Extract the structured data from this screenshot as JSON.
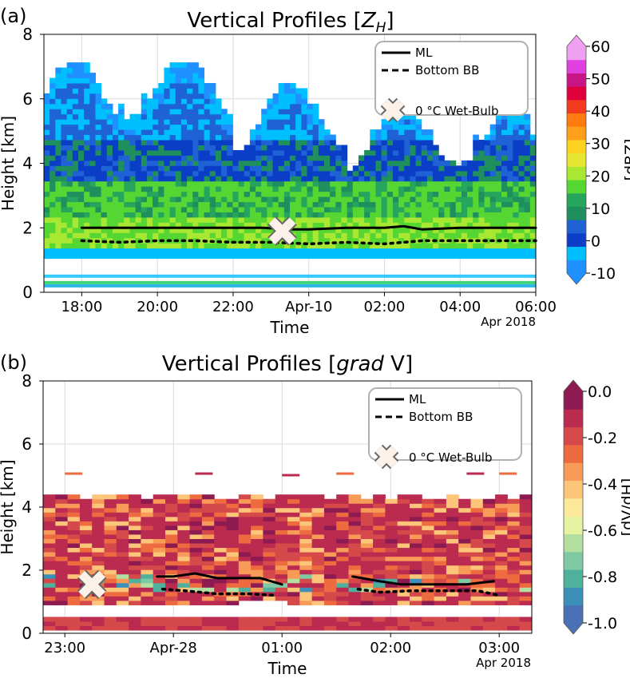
{
  "chart_data": [
    {
      "panel_label": "(a)",
      "type": "heatmap",
      "title_prefix": "Vertical Profiles [",
      "title_var": "Z",
      "title_sub": "H",
      "title_suffix": "]",
      "xlabel": "Time",
      "ylabel": "Height [km]",
      "x_ticks": [
        "18:00",
        "20:00",
        "22:00",
        "Apr-10",
        "02:00",
        "04:00",
        "06:00"
      ],
      "x_offset_label": "Apr 2018",
      "y_ticks": [
        "0",
        "2",
        "4",
        "6",
        "8"
      ],
      "ylim": [
        0,
        8
      ],
      "xlim_hours": [
        17.0,
        30.0
      ],
      "colorbar": {
        "label": "[dBZ]",
        "ticks": [
          "-10",
          "0",
          "10",
          "20",
          "30",
          "40",
          "50",
          "60"
        ],
        "range": [
          -10,
          60
        ],
        "colors": [
          "#1e90ff",
          "#00bfff",
          "#0a3ec7",
          "#1f62d6",
          "#1e8f5d",
          "#26a55d",
          "#56d632",
          "#a8e832",
          "#e6e632",
          "#ffd21f",
          "#ff9f1a",
          "#ff7a0f",
          "#f23a1f",
          "#e2003c",
          "#c71585",
          "#e040e0",
          "#f0a0f0"
        ],
        "extend": "both"
      },
      "legend": {
        "items": [
          {
            "label": "ML",
            "style": "solid"
          },
          {
            "label": "Bottom BB",
            "style": "dashed"
          },
          {
            "label": "0 °C Wet-Bulb",
            "style": "cross"
          }
        ]
      },
      "series": [
        {
          "name": "ML",
          "x": [
            18.0,
            19.0,
            20.0,
            21.0,
            22.0,
            22.8,
            23.5,
            24.0,
            25.0,
            26.0,
            26.5,
            27.0,
            28.0,
            29.0,
            30.0
          ],
          "y": [
            2.0,
            2.0,
            2.0,
            2.0,
            2.0,
            2.0,
            1.95,
            1.95,
            2.0,
            2.0,
            2.05,
            1.95,
            2.0,
            2.0,
            2.0
          ]
        },
        {
          "name": "Bottom BB",
          "x": [
            18.0,
            19.0,
            20.0,
            21.0,
            22.0,
            23.0,
            24.0,
            25.0,
            26.0,
            27.0,
            28.0,
            29.0,
            30.0
          ],
          "y": [
            1.6,
            1.55,
            1.6,
            1.6,
            1.55,
            1.55,
            1.5,
            1.55,
            1.5,
            1.6,
            1.6,
            1.6,
            1.6
          ]
        }
      ],
      "wet_bulb_marker": {
        "x": 23.3,
        "y": 1.9
      }
    },
    {
      "panel_label": "(b)",
      "type": "heatmap",
      "title_prefix": "Vertical Profiles [",
      "title_var": "grad",
      "title_suffix": " V]",
      "xlabel": "Time",
      "ylabel": "Height [km]",
      "x_ticks": [
        "23:00",
        "Apr-28",
        "01:00",
        "02:00",
        "03:00"
      ],
      "x_offset_label": "Apr 2018",
      "y_ticks": [
        "0",
        "2",
        "4",
        "6",
        "8"
      ],
      "ylim": [
        0,
        8
      ],
      "xlim_hours": [
        22.8,
        27.3
      ],
      "colorbar": {
        "label": "[dV/dH]",
        "ticks": [
          "0.0",
          "-0.2",
          "-0.4",
          "-0.6",
          "-0.8",
          "-1.0"
        ],
        "range": [
          -1.0,
          0.0
        ],
        "colors": [
          "#4a70b5",
          "#3c8fb8",
          "#4fb09c",
          "#7fcaa4",
          "#b3dfa0",
          "#e6f2a0",
          "#fbe89a",
          "#fdc57a",
          "#f89a58",
          "#ee6a3f",
          "#d5494a",
          "#bb2a4f",
          "#8e1a52"
        ],
        "extend": "both"
      },
      "legend": {
        "items": [
          {
            "label": "ML",
            "style": "solid"
          },
          {
            "label": "Bottom BB",
            "style": "dashed"
          },
          {
            "label": "0 °C Wet-Bulb",
            "style": "cross"
          }
        ]
      },
      "series": [
        {
          "name": "ML",
          "x": [
            23.85,
            24.0,
            24.2,
            24.4,
            24.6,
            24.8,
            25.0
          ],
          "y": [
            1.8,
            1.8,
            1.9,
            1.75,
            1.75,
            1.75,
            1.55
          ]
        },
        {
          "name": "ML",
          "x": [
            25.65,
            25.9,
            26.1,
            26.3,
            26.5,
            26.7,
            26.95
          ],
          "y": [
            1.8,
            1.65,
            1.55,
            1.55,
            1.55,
            1.55,
            1.65
          ]
        },
        {
          "name": "Bottom BB",
          "x": [
            23.9,
            24.1,
            24.4,
            24.7,
            24.95
          ],
          "y": [
            1.4,
            1.35,
            1.25,
            1.25,
            1.2
          ]
        },
        {
          "name": "Bottom BB",
          "x": [
            25.7,
            25.9,
            26.2,
            26.5,
            26.8,
            27.0
          ],
          "y": [
            1.4,
            1.3,
            1.35,
            1.35,
            1.35,
            1.2
          ]
        }
      ],
      "wet_bulb_marker": {
        "x": 23.25,
        "y": 1.55
      }
    }
  ]
}
